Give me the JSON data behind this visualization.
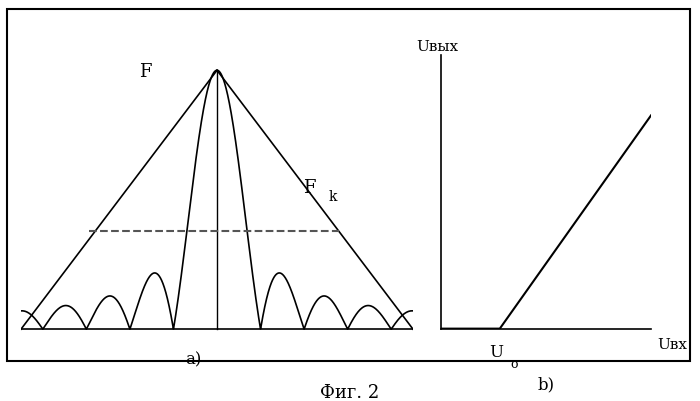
{
  "fig_title": "Фиг. 2",
  "panel_a_label": "a)",
  "panel_b_label": "b)",
  "F_label": "F",
  "Fk_label": "F",
  "Fk_sub": "k",
  "Uvyx_label": "Uвых",
  "Uvx_label": "Uвх",
  "U0_label": "U",
  "U0_sub": "o",
  "fk_level": 0.38,
  "bg_color": "#ffffff",
  "line_color": "#000000",
  "dashed_color": "#555555",
  "border_color": "#000000"
}
